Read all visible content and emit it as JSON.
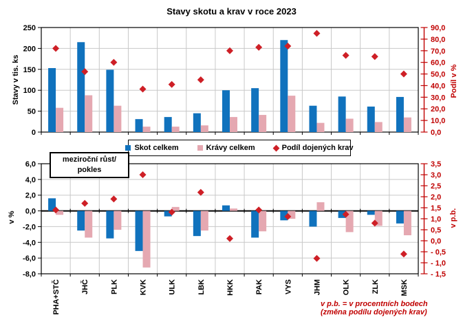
{
  "title": "Stavy skotu  a krav v roce 2023",
  "colors": {
    "skot_bar": "#1072BD",
    "kravy_bar": "#E5A8B1",
    "podil_marker": "#CE1F26",
    "secondary_axis": "#C00000",
    "grid": "#C8C8C8",
    "axis": "#000000"
  },
  "legend": {
    "items": [
      {
        "label": "Skot celkem",
        "swatch": "square",
        "color": "#1072BD"
      },
      {
        "label": "Krávy celkem",
        "swatch": "square",
        "color": "#E5A8B1"
      },
      {
        "label": "Podíl dojených krav",
        "swatch": "diamond",
        "color": "#CE1F26"
      }
    ]
  },
  "growth_box": {
    "line1": "meziroční růst/",
    "line2": "pokles"
  },
  "footnote": {
    "line1": "v p.b. =  v procentních bodech",
    "line2": "(změna podílu dojených krav)"
  },
  "chart_data": [
    {
      "id": "stavy-2023",
      "type": "bar",
      "title": "Stavy skotu  a krav v roce 2023",
      "categories": [
        "PHA+STČ",
        "JHČ",
        "PLK",
        "KVK",
        "ULK",
        "LBK",
        "HKK",
        "PAK",
        "VYS",
        "JHM",
        "OLK",
        "ZLK",
        "MSK"
      ],
      "series": [
        {
          "name": "Skot celkem",
          "type": "bar",
          "axis": "left",
          "values": [
            153,
            215,
            149,
            31,
            36,
            45,
            100,
            105,
            220,
            63,
            85,
            61,
            84
          ]
        },
        {
          "name": "Krávy celkem",
          "type": "bar",
          "axis": "left",
          "values": [
            58,
            88,
            63,
            13,
            13,
            16,
            36,
            41,
            87,
            22,
            32,
            24,
            35
          ]
        },
        {
          "name": "Podíl dojených krav",
          "type": "scatter",
          "marker": "diamond",
          "axis": "right",
          "values": [
            72,
            52,
            60,
            37,
            41,
            45,
            70,
            73,
            74,
            85,
            66,
            65,
            50
          ]
        }
      ],
      "ylabel_left": "Stavy v tis. ks",
      "ylim_left": [
        0,
        250
      ],
      "yticks_left": [
        "0",
        "50",
        "100",
        "150",
        "200",
        "250"
      ],
      "ylabel_right": "Podíl v %",
      "ylim_right": [
        0,
        90
      ],
      "yticks_right": [
        "0,0",
        "10,0",
        "20,0",
        "30,0",
        "40,0",
        "50,0",
        "60,0",
        "70,0",
        "80,0",
        "90,0"
      ],
      "grid": true,
      "legend_position": "bottom-center",
      "show_category_labels": false
    },
    {
      "id": "mezirocni-rust-pokles",
      "type": "bar",
      "title": "meziroční růst/pokles",
      "categories": [
        "PHA+STČ",
        "JHČ",
        "PLK",
        "KVK",
        "ULK",
        "LBK",
        "HKK",
        "PAK",
        "VYS",
        "JHM",
        "OLK",
        "ZLK",
        "MSK"
      ],
      "series": [
        {
          "name": "Skot celkem",
          "type": "bar",
          "axis": "left",
          "values": [
            1.6,
            -2.5,
            -3.5,
            -5.1,
            -0.7,
            -3.2,
            0.7,
            -3.4,
            -1.2,
            -2.0,
            -0.9,
            -0.5,
            -1.6
          ]
        },
        {
          "name": "Krávy celkem",
          "type": "bar",
          "axis": "left",
          "values": [
            -0.5,
            -3.4,
            -2.4,
            -7.2,
            0.5,
            -2.5,
            0.3,
            -2.6,
            -1.0,
            1.1,
            -2.7,
            -1.9,
            -3.1
          ]
        },
        {
          "name": "Podíl dojených krav (změna v p.b.)",
          "type": "scatter",
          "marker": "diamond",
          "axis": "right",
          "values": [
            1.4,
            1.7,
            1.9,
            3.0,
            1.3,
            2.2,
            0.1,
            1.4,
            1.1,
            -0.8,
            1.2,
            0.8,
            -0.6
          ]
        }
      ],
      "ylabel_left": "v %",
      "ylim_left": [
        -8,
        6
      ],
      "yticks_left": [
        "-8,0",
        "-6,0",
        "-4,0",
        "-2,0",
        "0,0",
        "2,0",
        "4,0",
        "6,0"
      ],
      "ylabel_right": "v p.b.",
      "ylim_right": [
        -1.5,
        3.5
      ],
      "yticks_right": [
        "- 1,5",
        "- 1,0",
        "- 0,5",
        "0,0",
        "0,5",
        "1,0",
        "1,5",
        "2,0",
        "2,5",
        "3,0",
        "3,5"
      ],
      "grid": true,
      "show_category_labels": true
    }
  ],
  "axis_titles": {
    "top_left": "Stavy v tis. ks",
    "top_right": "Podíl v %",
    "bottom_left": "v %",
    "bottom_right": "v p.b."
  }
}
